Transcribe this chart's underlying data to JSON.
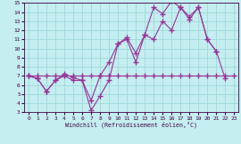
{
  "xlabel": "Windchill (Refroidissement éolien,°C)",
  "xlim": [
    -0.5,
    23.5
  ],
  "ylim": [
    3,
    15
  ],
  "xticks": [
    0,
    1,
    2,
    3,
    4,
    5,
    6,
    7,
    8,
    9,
    10,
    11,
    12,
    13,
    14,
    15,
    16,
    17,
    18,
    19,
    20,
    21,
    22,
    23
  ],
  "yticks": [
    3,
    4,
    5,
    6,
    7,
    8,
    9,
    10,
    11,
    12,
    13,
    14,
    15
  ],
  "bg_color": "#c4eef0",
  "line_color": "#993399",
  "grid_color": "#9ed8da",
  "line1_x": [
    0,
    1,
    2,
    3,
    4,
    5,
    6,
    7,
    8,
    9,
    10,
    11,
    12,
    13,
    14,
    15,
    16,
    17,
    18,
    19,
    20,
    21,
    22,
    23
  ],
  "line1_y": [
    7,
    7,
    7,
    7,
    7,
    7,
    7,
    7,
    7,
    7,
    7,
    7,
    7,
    7,
    7,
    7,
    7,
    7,
    7,
    7,
    7,
    7,
    7,
    7
  ],
  "line2_x": [
    0,
    1,
    2,
    3,
    4,
    5,
    6,
    7,
    8,
    9,
    10,
    11,
    12,
    13,
    14,
    15,
    16,
    17,
    18,
    19,
    20,
    21,
    22,
    23
  ],
  "line2_y": [
    7,
    6.7,
    5.3,
    6.5,
    7.0,
    6.5,
    6.5,
    3.2,
    4.8,
    6.5,
    10.5,
    11.0,
    8.5,
    11.5,
    11.0,
    13.0,
    12.0,
    14.5,
    13.2,
    14.5,
    11.0,
    9.7,
    null,
    null
  ],
  "line3_x": [
    0,
    1,
    2,
    3,
    4,
    5,
    6,
    7,
    8,
    9,
    10,
    11,
    12,
    13,
    14,
    15,
    16,
    17,
    18,
    19,
    20,
    21,
    22,
    23
  ],
  "line3_y": [
    7,
    6.7,
    5.3,
    6.5,
    7.2,
    6.8,
    6.5,
    4.3,
    7.0,
    8.5,
    10.5,
    11.2,
    9.5,
    11.5,
    14.5,
    13.8,
    15.2,
    14.5,
    13.5,
    14.5,
    11.0,
    9.7,
    6.7,
    null
  ]
}
